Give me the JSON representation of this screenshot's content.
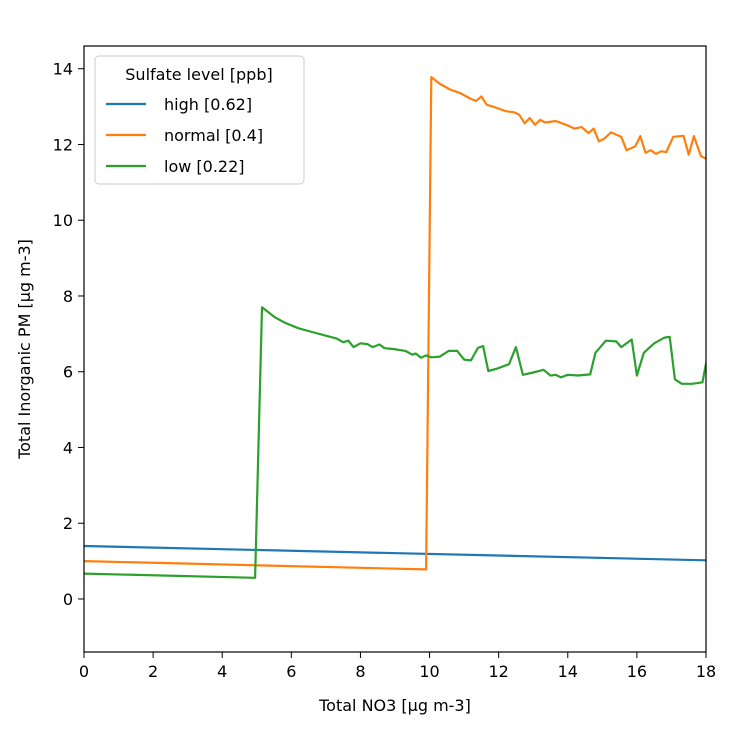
{
  "chart_data": {
    "type": "line",
    "title": "",
    "xlabel": "Total NO3 [µg m-3]",
    "ylabel": "Total Inorganic PM [µg m-3]",
    "xlim": [
      0,
      18
    ],
    "ylim": [
      -1.4,
      14.6
    ],
    "xticks": [
      0,
      2,
      4,
      6,
      8,
      10,
      12,
      14,
      16,
      18
    ],
    "yticks": [
      0,
      2,
      4,
      6,
      8,
      10,
      12,
      14
    ],
    "grid": false,
    "legend": {
      "title": "Sulfate level [ppb]",
      "placement": "top-left"
    },
    "series": [
      {
        "name": "high [0.62]",
        "color": "#1f77b4",
        "points": [
          [
            0,
            1.4
          ],
          [
            18,
            1.02
          ]
        ]
      },
      {
        "name": "normal [0.4]",
        "color": "#ff7f0e",
        "points": [
          [
            0,
            1.0
          ],
          [
            9.9,
            0.78
          ],
          [
            10.05,
            13.78
          ],
          [
            10.3,
            13.6
          ],
          [
            10.6,
            13.45
          ],
          [
            10.9,
            13.35
          ],
          [
            11.2,
            13.2
          ],
          [
            11.35,
            13.15
          ],
          [
            11.5,
            13.27
          ],
          [
            11.65,
            13.05
          ],
          [
            11.9,
            12.98
          ],
          [
            12.2,
            12.88
          ],
          [
            12.45,
            12.85
          ],
          [
            12.6,
            12.78
          ],
          [
            12.75,
            12.56
          ],
          [
            12.9,
            12.7
          ],
          [
            13.05,
            12.52
          ],
          [
            13.2,
            12.65
          ],
          [
            13.35,
            12.58
          ],
          [
            13.65,
            12.62
          ],
          [
            13.95,
            12.52
          ],
          [
            14.2,
            12.42
          ],
          [
            14.4,
            12.46
          ],
          [
            14.6,
            12.3
          ],
          [
            14.75,
            12.42
          ],
          [
            14.9,
            12.08
          ],
          [
            15.05,
            12.15
          ],
          [
            15.25,
            12.32
          ],
          [
            15.55,
            12.2
          ],
          [
            15.7,
            11.85
          ],
          [
            15.95,
            11.95
          ],
          [
            16.1,
            12.22
          ],
          [
            16.25,
            11.78
          ],
          [
            16.4,
            11.85
          ],
          [
            16.55,
            11.75
          ],
          [
            16.7,
            11.82
          ],
          [
            16.85,
            11.8
          ],
          [
            17.05,
            12.2
          ],
          [
            17.35,
            12.23
          ],
          [
            17.5,
            11.73
          ],
          [
            17.65,
            12.22
          ],
          [
            17.85,
            11.7
          ],
          [
            18,
            11.62
          ]
        ]
      },
      {
        "name": "low [0.22]",
        "color": "#2ca02c",
        "points": [
          [
            0,
            0.67
          ],
          [
            4.95,
            0.56
          ],
          [
            5.15,
            7.7
          ],
          [
            5.5,
            7.45
          ],
          [
            5.8,
            7.3
          ],
          [
            6.2,
            7.15
          ],
          [
            6.6,
            7.05
          ],
          [
            7.0,
            6.95
          ],
          [
            7.3,
            6.88
          ],
          [
            7.5,
            6.78
          ],
          [
            7.65,
            6.82
          ],
          [
            7.8,
            6.65
          ],
          [
            8.0,
            6.75
          ],
          [
            8.2,
            6.73
          ],
          [
            8.35,
            6.65
          ],
          [
            8.55,
            6.72
          ],
          [
            8.7,
            6.62
          ],
          [
            8.95,
            6.6
          ],
          [
            9.3,
            6.55
          ],
          [
            9.5,
            6.45
          ],
          [
            9.6,
            6.48
          ],
          [
            9.75,
            6.37
          ],
          [
            9.9,
            6.43
          ],
          [
            10.05,
            6.38
          ],
          [
            10.3,
            6.4
          ],
          [
            10.55,
            6.55
          ],
          [
            10.8,
            6.55
          ],
          [
            11.0,
            6.32
          ],
          [
            11.2,
            6.3
          ],
          [
            11.4,
            6.63
          ],
          [
            11.55,
            6.68
          ],
          [
            11.7,
            6.02
          ],
          [
            11.95,
            6.08
          ],
          [
            12.3,
            6.2
          ],
          [
            12.5,
            6.65
          ],
          [
            12.7,
            5.92
          ],
          [
            13.0,
            5.98
          ],
          [
            13.3,
            6.05
          ],
          [
            13.5,
            5.9
          ],
          [
            13.65,
            5.92
          ],
          [
            13.8,
            5.85
          ],
          [
            14.0,
            5.92
          ],
          [
            14.3,
            5.9
          ],
          [
            14.65,
            5.93
          ],
          [
            14.8,
            6.5
          ],
          [
            15.1,
            6.82
          ],
          [
            15.4,
            6.8
          ],
          [
            15.55,
            6.65
          ],
          [
            15.85,
            6.85
          ],
          [
            16.0,
            5.9
          ],
          [
            16.2,
            6.5
          ],
          [
            16.5,
            6.75
          ],
          [
            16.8,
            6.9
          ],
          [
            16.95,
            6.92
          ],
          [
            17.1,
            5.8
          ],
          [
            17.3,
            5.68
          ],
          [
            17.6,
            5.68
          ],
          [
            17.9,
            5.72
          ],
          [
            18.05,
            6.45
          ],
          [
            18.3,
            6.65
          ],
          [
            18.55,
            6.8
          ]
        ]
      }
    ]
  }
}
